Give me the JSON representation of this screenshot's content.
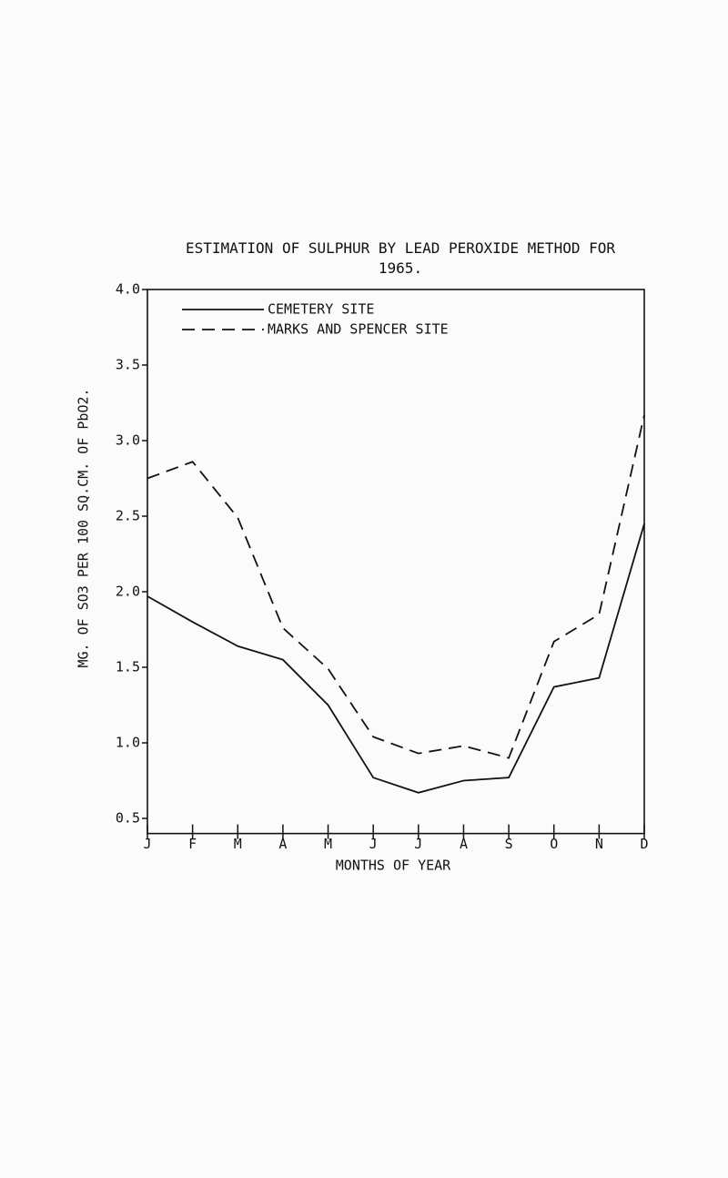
{
  "chart_data": {
    "type": "line",
    "title": "ESTIMATION OF SULPHUR BY LEAD PEROXIDE METHOD FOR 1965.",
    "x_label": "MONTHS OF YEAR",
    "y_label": "MG. OF SO3 PER 100 SQ.CM. OF PbO2.",
    "categories": [
      "J",
      "F",
      "M",
      "A",
      "M",
      "J",
      "J",
      "A",
      "S",
      "O",
      "N",
      "D"
    ],
    "series": [
      {
        "name": "CEMETERY SITE",
        "color": "#111111",
        "style": "solid",
        "values": [
          1.97,
          1.8,
          1.64,
          1.55,
          1.25,
          0.77,
          0.67,
          0.75,
          0.77,
          1.37,
          1.43,
          2.45
        ]
      },
      {
        "name": "MARKS AND SPENCER SITE",
        "color": "#111111",
        "style": "dashed",
        "values": [
          2.75,
          2.86,
          2.49,
          1.76,
          1.49,
          1.04,
          0.93,
          0.98,
          0.9,
          1.67,
          1.85,
          3.17
        ]
      }
    ],
    "ylim": [
      0.4,
      4.0
    ],
    "yticks": [
      {
        "value": 4,
        "label": "4.0"
      },
      3.5,
      {
        "value": 3,
        "label": "3.0"
      },
      2.5,
      {
        "value": 2,
        "label": "2.0"
      },
      1.5,
      {
        "value": 1,
        "label": "1.0"
      },
      0.5
    ],
    "grid": false
  }
}
